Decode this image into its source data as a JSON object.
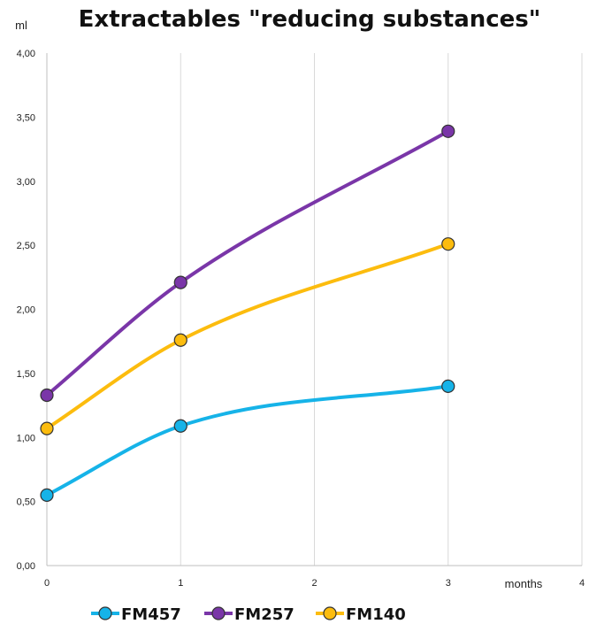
{
  "chart_data": {
    "type": "line",
    "title": "Extractables \"reducing substances\"",
    "ylabel": "ml",
    "xlabel": "months",
    "xlim": [
      0,
      4
    ],
    "ylim": [
      0,
      4
    ],
    "x_ticks": [
      "0",
      "1",
      "2",
      "3",
      "4"
    ],
    "y_ticks": [
      "0,00",
      "0,50",
      "1,00",
      "1,50",
      "2,00",
      "2,50",
      "3,00",
      "3,50",
      "4,00"
    ],
    "grid": {
      "vertical": true,
      "horizontal": false
    },
    "legend_position": "bottom",
    "x": [
      0,
      1,
      3
    ],
    "series": [
      {
        "name": "FM457",
        "color": "#16b3e8",
        "values": [
          0.55,
          1.09,
          1.4
        ]
      },
      {
        "name": "FM257",
        "color": "#7a36a8",
        "values": [
          1.33,
          2.21,
          3.39
        ]
      },
      {
        "name": "FM140",
        "color": "#fcbc0e",
        "values": [
          1.07,
          1.76,
          2.51
        ]
      }
    ]
  }
}
